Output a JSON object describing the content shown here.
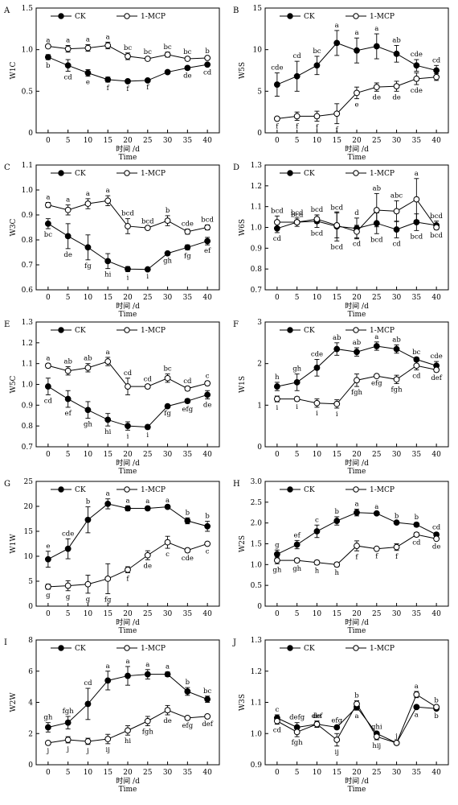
{
  "chart_data": [
    {
      "panel": "A",
      "type": "line",
      "ylabel": "W1C",
      "xlabel_cn": "时间 /d",
      "xlabel_en": "Time",
      "x": [
        0,
        5,
        10,
        15,
        20,
        25,
        30,
        35,
        40
      ],
      "ylim": [
        0,
        1.5
      ],
      "yticks": [
        0,
        0.5,
        1.0,
        1.5
      ],
      "ytick_labels": [
        "0",
        "0.5",
        "1.0",
        "1.5"
      ],
      "legend_position": "top-left",
      "series": [
        {
          "name": "CK",
          "marker": "filled",
          "values": [
            0.91,
            0.81,
            0.72,
            0.64,
            0.62,
            0.63,
            0.73,
            0.78,
            0.82
          ],
          "errors": [
            0.03,
            0.07,
            0.04,
            0.03,
            0.02,
            0.01,
            0.01,
            0.02,
            0.02
          ],
          "labels": [
            "b",
            "cd",
            "e",
            "f",
            "f",
            "f",
            "",
            "de",
            "cd"
          ]
        },
        {
          "name": "1-MCP",
          "marker": "open",
          "values": [
            1.04,
            1.01,
            1.02,
            1.05,
            0.92,
            0.89,
            0.94,
            0.89,
            0.9
          ],
          "errors": [
            0.01,
            0.04,
            0.04,
            0.04,
            0.04,
            0.02,
            0.03,
            0.02,
            0.02
          ],
          "labels": [
            "a",
            "a",
            "a",
            "a",
            "bc",
            "bc",
            "bc",
            "bc",
            "b"
          ]
        }
      ]
    },
    {
      "panel": "B",
      "type": "line",
      "ylabel": "W5S",
      "xlabel_cn": "时间 /d",
      "xlabel_en": "Time",
      "x": [
        0,
        5,
        10,
        15,
        20,
        25,
        30,
        35,
        40
      ],
      "ylim": [
        0,
        15
      ],
      "yticks": [
        0,
        5,
        10,
        15
      ],
      "ytick_labels": [
        "0",
        "5",
        "10",
        "15"
      ],
      "legend_position": "top-left",
      "series": [
        {
          "name": "CK",
          "marker": "filled",
          "values": [
            5.8,
            6.8,
            8.1,
            10.8,
            9.9,
            10.4,
            9.5,
            8.1,
            7.5
          ],
          "errors": [
            1.4,
            1.8,
            1.1,
            1.5,
            1.5,
            1.5,
            1.0,
            0.7,
            0.6
          ],
          "labels": [
            "cde",
            "cd",
            "bc",
            "a",
            "a",
            "a",
            "ab",
            "cde",
            "cd"
          ]
        },
        {
          "name": "1-MCP",
          "marker": "open",
          "values": [
            1.7,
            2.0,
            2.0,
            2.3,
            4.8,
            5.5,
            5.6,
            6.5,
            6.7
          ],
          "errors": [
            0.2,
            0.5,
            0.6,
            1.2,
            0.7,
            0.5,
            0.6,
            0.7,
            0.4
          ],
          "labels": [
            "f",
            "f",
            "f",
            "f",
            "e",
            "de",
            "de",
            "cde",
            ""
          ]
        }
      ]
    },
    {
      "panel": "C",
      "type": "line",
      "ylabel": "W3C",
      "xlabel_cn": "时间 /d",
      "xlabel_en": "Time",
      "x": [
        0,
        5,
        10,
        15,
        20,
        25,
        30,
        35,
        40
      ],
      "ylim": [
        0.6,
        1.1
      ],
      "yticks": [
        0.6,
        0.7,
        0.8,
        0.9,
        1.0,
        1.1
      ],
      "ytick_labels": [
        "0.6",
        "0.7",
        "0.8",
        "0.9",
        "1.0",
        "1.1"
      ],
      "legend_position": "top-left",
      "series": [
        {
          "name": "CK",
          "marker": "filled",
          "values": [
            0.865,
            0.815,
            0.77,
            0.715,
            0.683,
            0.682,
            0.746,
            0.77,
            0.795
          ],
          "errors": [
            0.02,
            0.05,
            0.05,
            0.03,
            0.01,
            0.005,
            0.005,
            0.01,
            0.015
          ],
          "labels": [
            "bc",
            "de",
            "fg",
            "hi",
            "i",
            "i",
            "gh",
            "fg",
            "ef"
          ]
        },
        {
          "name": "1-MCP",
          "marker": "open",
          "values": [
            0.94,
            0.92,
            0.945,
            0.957,
            0.855,
            0.848,
            0.877,
            0.833,
            0.85
          ],
          "errors": [
            0.01,
            0.02,
            0.02,
            0.02,
            0.03,
            0.005,
            0.02,
            0.01,
            0.01
          ],
          "labels": [
            "a",
            "a",
            "a",
            "a",
            "bcd",
            "bcd",
            "b",
            "cde",
            "bcd"
          ]
        }
      ]
    },
    {
      "panel": "D",
      "type": "line",
      "ylabel": "W6S",
      "xlabel_cn": "时间 /d",
      "xlabel_en": "Time",
      "x": [
        0,
        5,
        10,
        15,
        20,
        25,
        30,
        35,
        40
      ],
      "ylim": [
        0.7,
        1.3
      ],
      "yticks": [
        0.7,
        0.8,
        0.9,
        1.0,
        1.1,
        1.2,
        1.3
      ],
      "ytick_labels": [
        "0.7",
        "0.8",
        "0.9",
        "1.0",
        "1.1",
        "1.2",
        "1.3"
      ],
      "legend_position": "top-left",
      "series": [
        {
          "name": "CK",
          "marker": "filled",
          "values": [
            0.995,
            1.025,
            1.03,
            1.005,
            0.995,
            1.02,
            0.99,
            1.025,
            1.01
          ],
          "errors": [
            0.02,
            0.02,
            0.03,
            0.07,
            0.05,
            0.05,
            0.04,
            0.04,
            0.02
          ],
          "labels": [
            "cd",
            "bcd",
            "bcd",
            "bcd",
            "d",
            "bcd",
            "cd",
            "bcd",
            "bcd"
          ]
        },
        {
          "name": "1-MCP",
          "marker": "open",
          "values": [
            1.025,
            1.025,
            1.04,
            1.01,
            0.98,
            1.083,
            1.078,
            1.135,
            1.0
          ],
          "errors": [
            0.03,
            0.01,
            0.02,
            0.06,
            0.03,
            0.08,
            0.05,
            0.1,
            0.01
          ],
          "labels": [
            "bcd",
            "bcd",
            "bcd",
            "bcd",
            "cd",
            "ab",
            "abc",
            "a",
            "bcd"
          ]
        }
      ]
    },
    {
      "panel": "E",
      "type": "line",
      "ylabel": "W5C",
      "xlabel_cn": "时间 /d",
      "xlabel_en": "Time",
      "x": [
        0,
        5,
        10,
        15,
        20,
        25,
        30,
        35,
        40
      ],
      "ylim": [
        0.7,
        1.3
      ],
      "yticks": [
        0.7,
        0.8,
        0.9,
        1.0,
        1.1,
        1.2,
        1.3
      ],
      "ytick_labels": [
        "0.7",
        "0.8",
        "0.9",
        "1.0",
        "1.1",
        "1.2",
        "1.3"
      ],
      "legend_position": "top-left",
      "series": [
        {
          "name": "CK",
          "marker": "filled",
          "values": [
            0.99,
            0.93,
            0.877,
            0.83,
            0.8,
            0.795,
            0.895,
            0.92,
            0.95
          ],
          "errors": [
            0.04,
            0.04,
            0.04,
            0.03,
            0.02,
            0.01,
            0.005,
            0.01,
            0.02
          ],
          "labels": [
            "cd",
            "ef",
            "gh",
            "hi",
            "i",
            "i",
            "fg",
            "efg",
            "de"
          ]
        },
        {
          "name": "1-MCP",
          "marker": "open",
          "values": [
            1.09,
            1.065,
            1.08,
            1.11,
            0.99,
            0.99,
            1.03,
            0.98,
            1.005
          ],
          "errors": [
            0.01,
            0.02,
            0.02,
            0.02,
            0.04,
            0.01,
            0.02,
            0.01,
            0.01
          ],
          "labels": [
            "a",
            "ab",
            "ab",
            "a",
            "cd",
            "cd",
            "bc",
            "cd",
            "c"
          ]
        }
      ]
    },
    {
      "panel": "F",
      "type": "line",
      "ylabel": "W1S",
      "xlabel_cn": "时间 /d",
      "xlabel_en": "Time",
      "x": [
        0,
        5,
        10,
        15,
        20,
        25,
        30,
        35,
        40
      ],
      "ylim": [
        0,
        3
      ],
      "yticks": [
        0,
        1,
        2,
        3
      ],
      "ytick_labels": [
        "0",
        "1",
        "2",
        "3"
      ],
      "legend_position": "top-left",
      "series": [
        {
          "name": "CK",
          "marker": "filled",
          "values": [
            1.45,
            1.55,
            1.9,
            2.35,
            2.28,
            2.42,
            2.35,
            2.1,
            1.95
          ],
          "errors": [
            0.1,
            0.2,
            0.2,
            0.15,
            0.1,
            0.1,
            0.1,
            0.05,
            0.1
          ],
          "labels": [
            "h",
            "gh",
            "cde",
            "ab",
            "ab",
            "a",
            "ab",
            "bc",
            "cde"
          ]
        },
        {
          "name": "1-MCP",
          "marker": "open",
          "values": [
            1.15,
            1.15,
            1.05,
            1.03,
            1.6,
            1.7,
            1.62,
            1.95,
            1.85
          ],
          "errors": [
            0.07,
            0.05,
            0.1,
            0.1,
            0.15,
            0.03,
            0.1,
            0.1,
            0.05
          ],
          "labels": [
            "i",
            "i",
            "i",
            "i",
            "fgh",
            "efg",
            "fgh",
            "cd",
            "def"
          ]
        }
      ]
    },
    {
      "panel": "G",
      "type": "line",
      "ylabel": "W1W",
      "xlabel_cn": "时间 /d",
      "xlabel_en": "Time",
      "x": [
        0,
        5,
        10,
        15,
        20,
        25,
        30,
        35,
        40
      ],
      "ylim": [
        0,
        25
      ],
      "yticks": [
        0,
        5,
        10,
        15,
        20,
        25
      ],
      "ytick_labels": [
        "0",
        "5",
        "10",
        "15",
        "20",
        "25"
      ],
      "legend_position": "top-left",
      "series": [
        {
          "name": "CK",
          "marker": "filled",
          "values": [
            9.4,
            11.5,
            17.3,
            20.5,
            19.6,
            19.6,
            19.9,
            17.1,
            16.0
          ],
          "errors": [
            1.6,
            2.0,
            2.6,
            1.0,
            0.5,
            0.4,
            0.3,
            0.6,
            1.0
          ],
          "labels": [
            "e",
            "cde",
            "b",
            "a",
            "a",
            "a",
            "a",
            "b",
            "b"
          ]
        },
        {
          "name": "1-MCP",
          "marker": "open",
          "values": [
            3.9,
            4.1,
            4.4,
            5.5,
            7.3,
            10.2,
            12.8,
            11.2,
            12.5
          ],
          "errors": [
            0.5,
            1.0,
            1.8,
            3.0,
            0.6,
            0.9,
            1.2,
            0.4,
            0.3
          ],
          "labels": [
            "g",
            "g",
            "g",
            "fg",
            "f",
            "de",
            "c",
            "cde",
            "c"
          ]
        }
      ]
    },
    {
      "panel": "H",
      "type": "line",
      "ylabel": "W2S",
      "xlabel_cn": "时间 /d",
      "xlabel_en": "Time",
      "x": [
        0,
        5,
        10,
        15,
        20,
        25,
        30,
        35,
        40
      ],
      "ylim": [
        0,
        3.0
      ],
      "yticks": [
        0,
        0.5,
        1.0,
        1.5,
        2.0,
        2.5,
        3.0
      ],
      "ytick_labels": [
        "0",
        "0.5",
        "1.0",
        "1.5",
        "2.0",
        "2.5",
        "3.0"
      ],
      "legend_position": "top-left",
      "series": [
        {
          "name": "CK",
          "marker": "filled",
          "values": [
            1.25,
            1.48,
            1.8,
            2.05,
            2.25,
            2.23,
            2.01,
            1.96,
            1.72
          ],
          "errors": [
            0.1,
            0.1,
            0.15,
            0.1,
            0.08,
            0.03,
            0.03,
            0.05,
            0.05
          ],
          "labels": [
            "g",
            "ef",
            "c",
            "b",
            "a",
            "a",
            "b",
            "b",
            "cd"
          ]
        },
        {
          "name": "1-MCP",
          "marker": "open",
          "values": [
            1.1,
            1.1,
            1.05,
            1.0,
            1.45,
            1.38,
            1.42,
            1.72,
            1.62
          ],
          "errors": [
            0.08,
            0.05,
            0.05,
            0.05,
            0.12,
            0.03,
            0.08,
            0.05,
            0.04
          ],
          "labels": [
            "gh",
            "gh",
            "h",
            "h",
            "f",
            "f",
            "f",
            "cd",
            "de"
          ]
        }
      ]
    },
    {
      "panel": "I",
      "type": "line",
      "ylabel": "W2W",
      "xlabel_cn": "时间 /d",
      "xlabel_en": "Time",
      "x": [
        0,
        5,
        10,
        15,
        20,
        25,
        30,
        35,
        40
      ],
      "ylim": [
        0,
        8
      ],
      "yticks": [
        0,
        2,
        4,
        6,
        8
      ],
      "ytick_labels": [
        "0",
        "2",
        "4",
        "6",
        "8"
      ],
      "legend_position": "top-left",
      "series": [
        {
          "name": "CK",
          "marker": "filled",
          "values": [
            2.4,
            2.7,
            3.9,
            5.4,
            5.7,
            5.8,
            5.8,
            4.7,
            4.2
          ],
          "errors": [
            0.3,
            0.4,
            1.0,
            0.6,
            0.6,
            0.3,
            0.15,
            0.25,
            0.2
          ],
          "labels": [
            "gh",
            "fgh",
            "cd",
            "a",
            "a",
            "a",
            "a",
            "b",
            "bc"
          ]
        },
        {
          "name": "1-MCP",
          "marker": "open",
          "values": [
            1.4,
            1.6,
            1.5,
            1.65,
            2.2,
            2.8,
            3.5,
            3.0,
            3.1
          ],
          "errors": [
            0.1,
            0.2,
            0.2,
            0.3,
            0.3,
            0.3,
            0.3,
            0.1,
            0.1
          ],
          "labels": [
            "j",
            "j",
            "j",
            "ij",
            "hi",
            "fgh",
            "de",
            "efg",
            "def"
          ]
        }
      ]
    },
    {
      "panel": "J",
      "type": "line",
      "ylabel": "W3S",
      "xlabel_cn": "时间 /d",
      "xlabel_en": "Time",
      "x": [
        0,
        5,
        10,
        15,
        20,
        25,
        30,
        35,
        40
      ],
      "ylim": [
        0.9,
        1.3
      ],
      "yticks": [
        0.9,
        1.0,
        1.1,
        1.2,
        1.3
      ],
      "ytick_labels": [
        "0.9",
        "1.0",
        "1.1",
        "1.2",
        "1.3"
      ],
      "legend_position": "top-left",
      "series": [
        {
          "name": "CK",
          "marker": "filled",
          "values": [
            1.05,
            1.02,
            1.03,
            1.02,
            1.085,
            1.0,
            0.97,
            1.085,
            1.08
          ],
          "errors": [
            0.01,
            0.015,
            0.01,
            0.005,
            0.01,
            0.005,
            0.005,
            0.005,
            0.005
          ],
          "labels": [
            "c",
            "defg",
            "de",
            "efg",
            "a",
            "ghi",
            "j",
            "a",
            "b"
          ]
        },
        {
          "name": "1-MCP",
          "marker": "open",
          "values": [
            1.04,
            1.005,
            1.03,
            0.98,
            1.095,
            0.99,
            0.97,
            1.125,
            1.085
          ],
          "errors": [
            0.01,
            0.015,
            0.01,
            0.02,
            0.01,
            0.01,
            0.005,
            0.01,
            0.005
          ],
          "labels": [
            "cd",
            "fgh",
            "def",
            "ij",
            "b",
            "hij",
            "",
            "a",
            "b"
          ]
        }
      ]
    }
  ]
}
